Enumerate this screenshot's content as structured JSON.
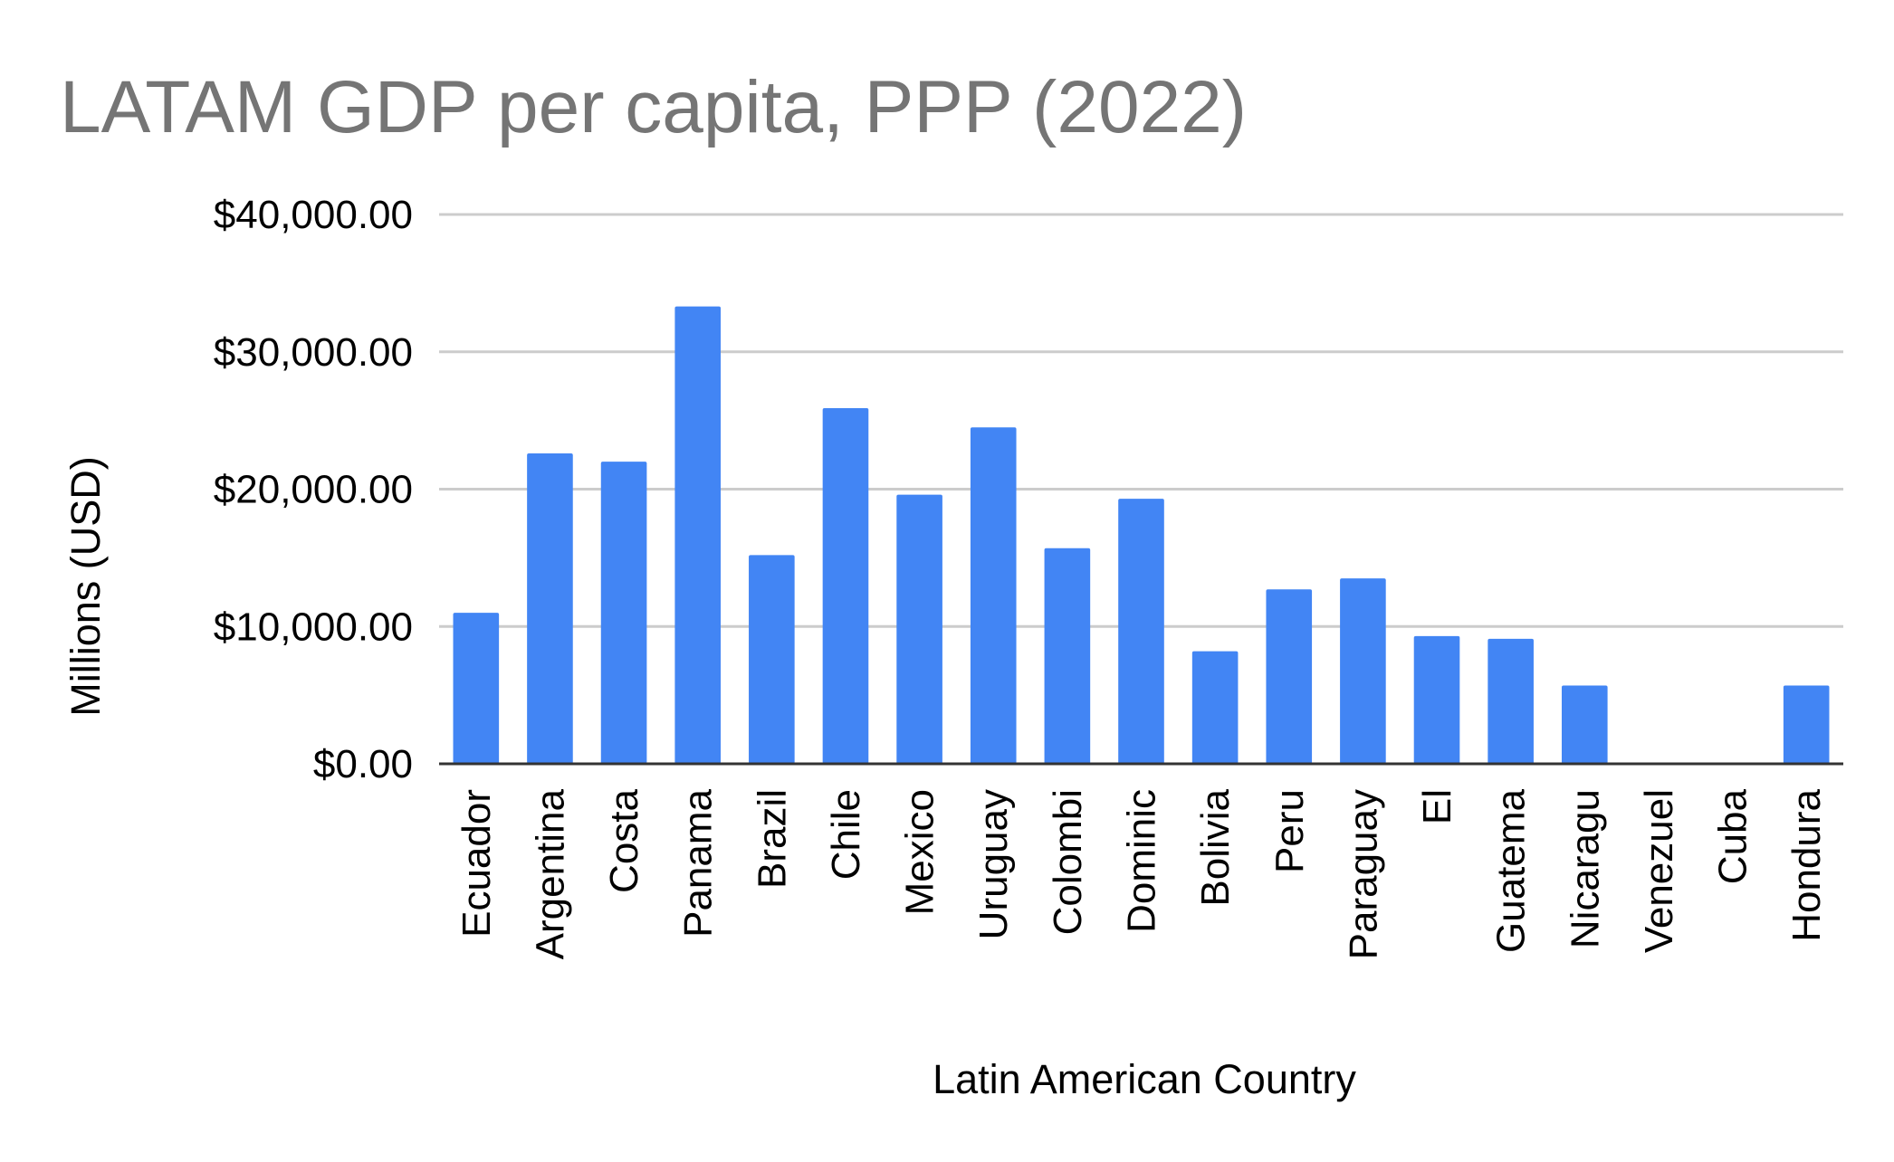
{
  "chart_data": {
    "type": "bar",
    "title": "LATAM GDP per capita, PPP (2022)",
    "xlabel": "Latin American Country",
    "ylabel": "Millions (USD)",
    "ylim": [
      0,
      40000
    ],
    "yticks": [
      0,
      10000,
      20000,
      30000,
      40000
    ],
    "ytick_labels": [
      "$0.00",
      "$10,000.00",
      "$20,000.00",
      "$30,000.00",
      "$40,000.00"
    ],
    "grid": true,
    "legend": "none",
    "bar_color": "#4285f4",
    "categories": [
      "Ecuador",
      "Argentina",
      "Costa",
      "Panama",
      "Brazil",
      "Chile",
      "Mexico",
      "Uruguay",
      "Colombi",
      "Dominic",
      "Bolivia",
      "Peru",
      "Paraguay",
      "El",
      "Guatema",
      "Nicaragu",
      "Venezuel",
      "Cuba",
      "Hondura"
    ],
    "values": [
      11000,
      22600,
      22000,
      33300,
      15200,
      25900,
      19600,
      24500,
      15700,
      19300,
      8200,
      12700,
      13500,
      9300,
      9100,
      5700,
      0,
      0,
      5700
    ]
  }
}
